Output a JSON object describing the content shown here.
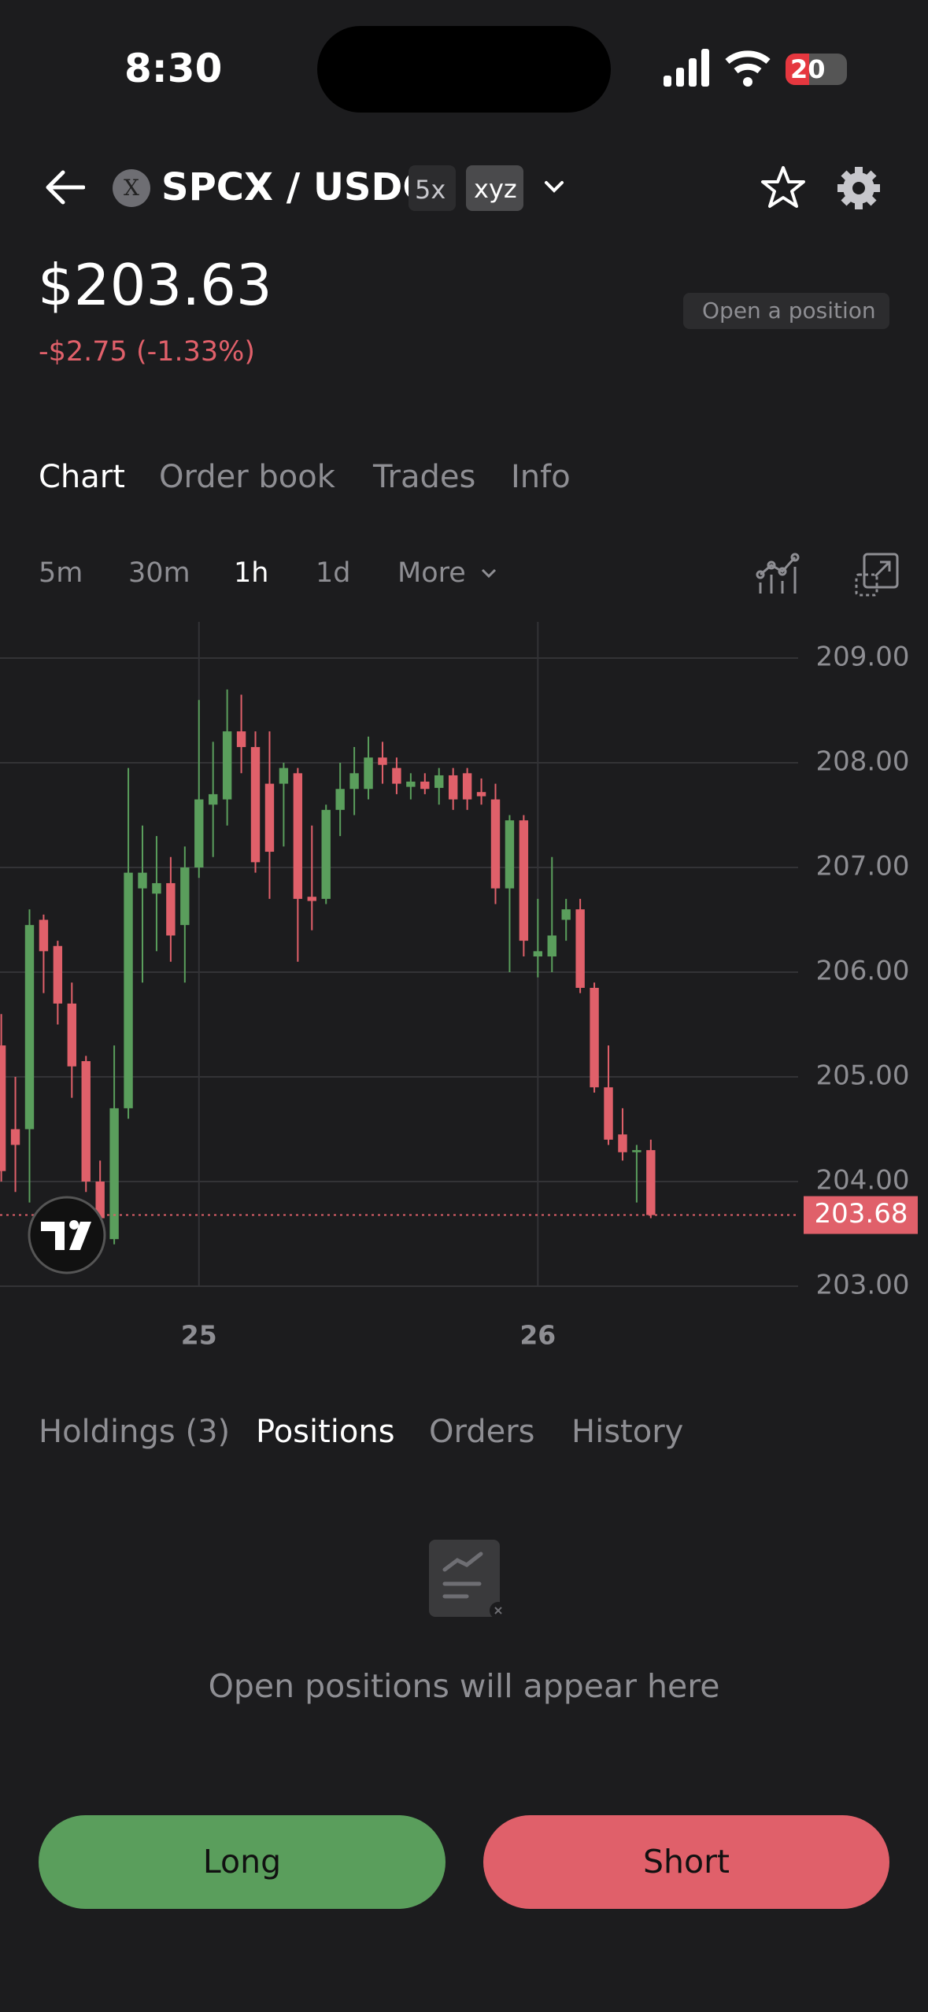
{
  "status_bar": {
    "time": "8:30",
    "battery": "20"
  },
  "header": {
    "icon_letter": "X",
    "pair": "SPCX / USDC",
    "leverage": "5x",
    "tag": "xyz"
  },
  "price": {
    "value": "$203.63",
    "change": "-$2.75 (-1.33%)"
  },
  "open_position": "Open a position",
  "tabs": [
    "Chart",
    "Order book",
    "Trades",
    "Info"
  ],
  "timeframes": [
    "5m",
    "30m",
    "1h",
    "1d",
    "More"
  ],
  "chart_data": {
    "type": "candlestick",
    "categories": [
      null,
      null,
      null,
      null,
      null,
      null,
      null,
      null,
      null,
      null,
      null,
      null,
      null,
      null,
      "25",
      null,
      null,
      null,
      null,
      null,
      null,
      null,
      null,
      null,
      null,
      null,
      null,
      null,
      null,
      null,
      null,
      null,
      null,
      null,
      null,
      null,
      null,
      null,
      "26",
      null,
      null,
      null,
      null,
      null,
      null,
      null,
      null
    ],
    "open": [
      205.3,
      204.5,
      204.5,
      206.5,
      206.25,
      205.7,
      205.15,
      204.0,
      203.45,
      204.7,
      206.8,
      206.75,
      206.85,
      206.45,
      207.0,
      207.6,
      207.65,
      208.3,
      208.15,
      207.8,
      207.8,
      207.9,
      206.72,
      206.7,
      207.55,
      207.75,
      207.75,
      208.05,
      207.95,
      207.77,
      207.82,
      207.76,
      207.88,
      207.9,
      207.72,
      207.65,
      206.8,
      207.45,
      206.15,
      206.15,
      206.5,
      206.6,
      205.85,
      204.9,
      204.45,
      204.28,
      204.3
    ],
    "high": [
      205.6,
      205.0,
      206.6,
      206.55,
      206.3,
      205.9,
      205.2,
      204.2,
      205.3,
      207.95,
      207.4,
      207.3,
      207.1,
      207.2,
      208.6,
      208.2,
      208.7,
      208.65,
      208.3,
      208.3,
      208.0,
      207.95,
      207.4,
      207.6,
      208.0,
      208.15,
      208.25,
      208.2,
      208.05,
      207.9,
      207.9,
      207.95,
      207.95,
      207.95,
      207.85,
      207.8,
      207.5,
      207.5,
      206.7,
      207.1,
      206.7,
      206.7,
      205.9,
      205.3,
      204.7,
      204.35,
      204.4
    ],
    "low": [
      204.0,
      203.9,
      203.8,
      205.8,
      205.5,
      204.8,
      203.9,
      203.5,
      203.4,
      204.6,
      205.9,
      206.2,
      206.1,
      205.9,
      206.9,
      207.1,
      207.4,
      207.9,
      206.95,
      206.7,
      207.2,
      206.1,
      206.4,
      206.65,
      207.3,
      207.5,
      207.65,
      207.8,
      207.7,
      207.65,
      207.7,
      207.6,
      207.55,
      207.55,
      207.6,
      206.65,
      206.0,
      206.15,
      205.95,
      206.0,
      206.3,
      205.8,
      204.85,
      204.35,
      204.2,
      203.8,
      203.65
    ],
    "close": [
      204.1,
      204.35,
      206.45,
      206.2,
      205.7,
      205.1,
      204.0,
      203.65,
      204.7,
      206.95,
      206.95,
      206.85,
      206.35,
      207.0,
      207.65,
      207.7,
      208.3,
      208.15,
      207.05,
      207.15,
      207.95,
      206.7,
      206.68,
      207.55,
      207.75,
      207.9,
      208.05,
      207.98,
      207.8,
      207.82,
      207.75,
      207.88,
      207.65,
      207.65,
      207.68,
      206.8,
      207.45,
      206.3,
      206.2,
      206.35,
      206.6,
      205.85,
      204.9,
      204.4,
      204.28,
      204.3,
      203.68
    ],
    "up_color": "#5a9e5c",
    "down_color": "#e0606a",
    "ylim": [
      203,
      209
    ],
    "yticks": [
      {
        "value": 209,
        "label": "209.00"
      },
      {
        "value": 208,
        "label": "208.00"
      },
      {
        "value": 207,
        "label": "207.00"
      },
      {
        "value": 206,
        "label": "206.00"
      },
      {
        "value": 205,
        "label": "205.00"
      },
      {
        "value": 204,
        "label": "204.00"
      },
      {
        "value": 203,
        "label": "203.00"
      }
    ],
    "last_price": 203.68,
    "grid": true
  },
  "bottom_tabs": [
    "Holdings (3)",
    "Positions",
    "Orders",
    "History"
  ],
  "empty_state": "Open positions will appear here",
  "buttons": {
    "long": "Long",
    "short": "Short"
  }
}
